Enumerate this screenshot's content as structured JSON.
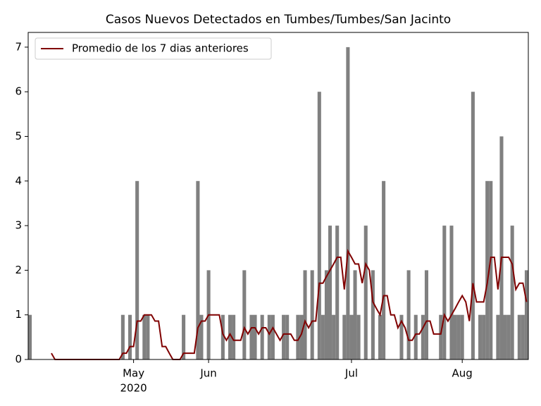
{
  "chart_data": {
    "type": "bar",
    "title": "Casos Nuevos Detectados en Tumbes/Tumbes/San Jacinto",
    "categories": [
      null,
      null,
      null,
      null,
      null,
      null,
      null,
      null,
      null,
      null,
      null,
      null,
      null,
      null,
      null,
      null,
      null,
      null,
      null,
      null,
      null,
      null,
      null,
      null,
      null,
      null,
      null,
      null,
      null,
      "May",
      null,
      null,
      null,
      null,
      null,
      null,
      null,
      null,
      null,
      null,
      null,
      null,
      null,
      null,
      null,
      null,
      null,
      null,
      null,
      null,
      "Jun",
      null,
      null,
      null,
      null,
      null,
      null,
      null,
      null,
      null,
      null,
      null,
      null,
      null,
      null,
      null,
      null,
      null,
      null,
      null,
      null,
      null,
      null,
      null,
      null,
      null,
      null,
      null,
      null,
      null,
      null,
      null,
      null,
      null,
      null,
      null,
      null,
      null,
      null,
      null,
      "Jul",
      null,
      null,
      null,
      null,
      null,
      null,
      null,
      null,
      null,
      null,
      null,
      null,
      null,
      null,
      null,
      null,
      null,
      null,
      null,
      null,
      null,
      null,
      null,
      null,
      null,
      null,
      null,
      null,
      null,
      null,
      "Aug",
      null,
      null,
      null,
      null,
      null,
      null,
      null,
      null,
      null,
      null,
      null,
      null,
      null,
      null,
      null,
      null,
      null,
      null
    ],
    "year_label": "2020",
    "series": [
      {
        "type": "bar",
        "color": "#808080",
        "values": [
          1,
          0,
          0,
          0,
          0,
          0,
          0,
          0,
          0,
          0,
          0,
          0,
          0,
          0,
          0,
          0,
          0,
          0,
          0,
          0,
          0,
          0,
          0,
          0,
          0,
          0,
          1,
          0,
          1,
          0,
          4,
          0,
          1,
          1,
          0,
          0,
          0,
          0,
          0,
          0,
          0,
          0,
          0,
          1,
          0,
          0,
          0,
          4,
          1,
          0,
          2,
          0,
          0,
          0,
          1,
          0,
          1,
          1,
          0,
          0,
          2,
          0,
          1,
          1,
          0,
          1,
          0,
          1,
          1,
          0,
          0,
          1,
          1,
          0,
          0,
          1,
          1,
          2,
          0,
          2,
          0,
          6,
          1,
          2,
          3,
          1,
          3,
          0,
          1,
          7,
          1,
          2,
          1,
          0,
          3,
          0,
          2,
          0,
          1,
          4,
          0,
          0,
          0,
          0,
          1,
          0,
          2,
          0,
          1,
          0,
          1,
          2,
          0,
          0,
          0,
          1,
          3,
          0,
          3,
          1,
          1,
          1,
          0,
          0,
          6,
          0,
          1,
          1,
          4,
          4,
          0,
          1,
          5,
          1,
          1,
          3,
          0,
          1,
          1,
          2
        ]
      },
      {
        "type": "line",
        "name": "Promedio de los 7 dias anteriores",
        "color": "#800000",
        "values": [
          null,
          null,
          null,
          null,
          null,
          null,
          0.14,
          0,
          0,
          0,
          0,
          0,
          0,
          0,
          0,
          0,
          0,
          0,
          0,
          0,
          0,
          0,
          0,
          0,
          0,
          0,
          0.14,
          0.14,
          0.29,
          0.29,
          0.86,
          0.86,
          1,
          1,
          1,
          0.86,
          0.86,
          0.29,
          0.29,
          0.14,
          0,
          0,
          0,
          0.14,
          0.14,
          0.14,
          0.14,
          0.71,
          0.86,
          0.86,
          1,
          1,
          1,
          1,
          0.57,
          0.43,
          0.57,
          0.43,
          0.43,
          0.43,
          0.71,
          0.57,
          0.71,
          0.71,
          0.57,
          0.71,
          0.71,
          0.57,
          0.71,
          0.57,
          0.43,
          0.57,
          0.57,
          0.57,
          0.43,
          0.43,
          0.57,
          0.86,
          0.71,
          0.86,
          0.86,
          1.71,
          1.71,
          1.86,
          2,
          2.14,
          2.29,
          2.29,
          1.57,
          2.43,
          2.29,
          2.14,
          2.14,
          1.71,
          2.14,
          2,
          1.29,
          1.14,
          1,
          1.43,
          1.43,
          1,
          1,
          0.71,
          0.86,
          0.71,
          0.43,
          0.43,
          0.57,
          0.57,
          0.71,
          0.86,
          0.86,
          0.57,
          0.57,
          0.57,
          1,
          0.86,
          1,
          1.14,
          1.29,
          1.43,
          1.29,
          0.86,
          1.71,
          1.29,
          1.29,
          1.29,
          1.71,
          2.29,
          2.29,
          1.57,
          2.29,
          2.29,
          2.29,
          2.14,
          1.57,
          1.71,
          1.71,
          1.29
        ]
      }
    ],
    "ylim": [
      0,
      7.33
    ],
    "yticks": [
      0,
      1,
      2,
      3,
      4,
      5,
      6,
      7
    ],
    "legend": "upper left"
  }
}
